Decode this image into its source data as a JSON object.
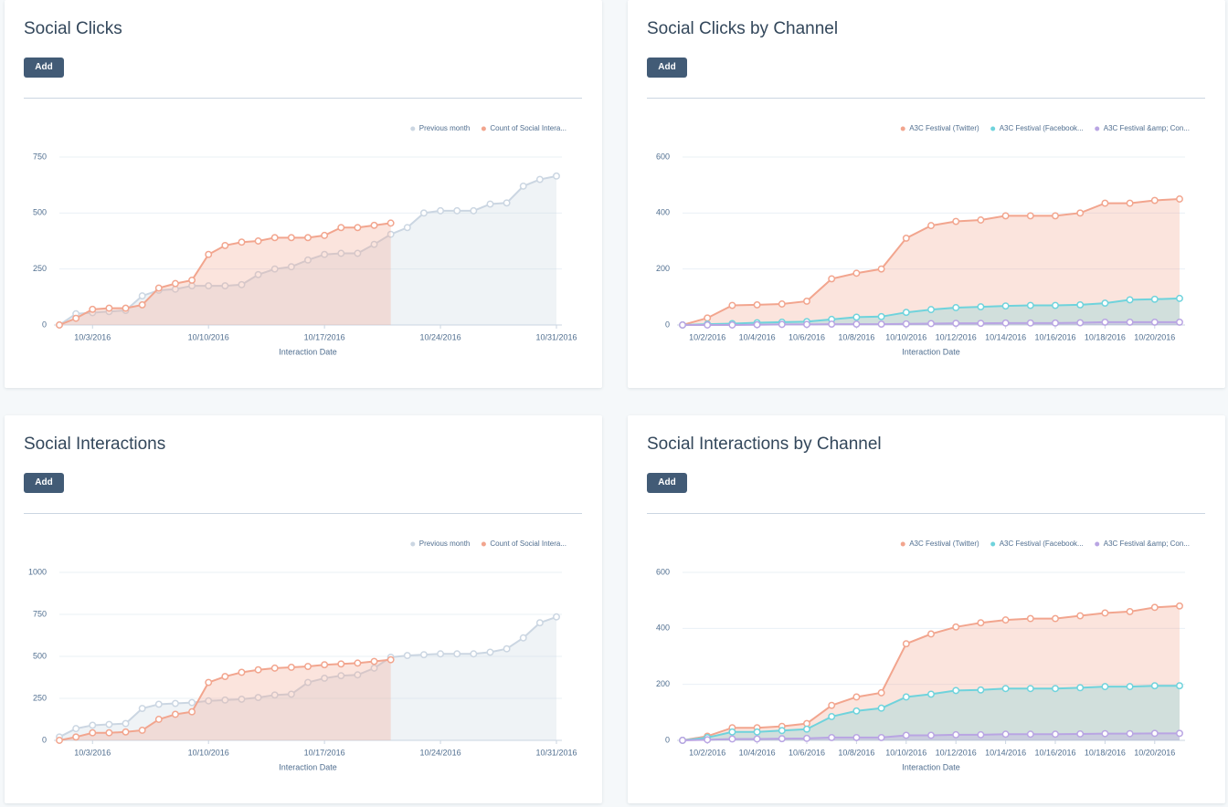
{
  "chart_data": [
    {
      "type": "line",
      "title": "Social Clicks",
      "button": "Add",
      "xlabel": "Interaction Date",
      "categories": [
        null,
        null,
        "10/3/2016",
        null,
        null,
        null,
        null,
        null,
        null,
        "10/10/2016",
        null,
        null,
        null,
        null,
        null,
        null,
        "10/17/2016",
        null,
        null,
        null,
        null,
        null,
        null,
        "10/24/2016",
        null,
        null,
        null,
        null,
        null,
        null,
        "10/31/2016"
      ],
      "series": [
        {
          "name": "Previous month",
          "color": "#cbd6e2",
          "values": [
            0,
            50,
            55,
            60,
            65,
            130,
            155,
            160,
            175,
            175,
            175,
            180,
            225,
            250,
            260,
            290,
            315,
            320,
            320,
            360,
            405,
            435,
            500,
            510,
            510,
            510,
            540,
            545,
            620,
            650,
            665
          ]
        },
        {
          "name": "Count of Social Intera...",
          "color": "#f2a58e",
          "values": [
            0,
            30,
            70,
            75,
            75,
            90,
            165,
            185,
            200,
            315,
            355,
            370,
            375,
            390,
            390,
            390,
            400,
            435,
            435,
            445,
            455,
            null,
            null,
            null,
            null,
            null,
            null,
            null,
            null,
            null,
            null
          ]
        }
      ],
      "ylim": [
        0,
        750
      ],
      "yticks": [
        0,
        250,
        500,
        750
      ],
      "grid": true,
      "legend": "top-right"
    },
    {
      "type": "line",
      "title": "Social Clicks by Channel",
      "button": "Add",
      "xlabel": "Interaction Date",
      "categories": [
        null,
        "10/2/2016",
        null,
        "10/4/2016",
        null,
        "10/6/2016",
        null,
        "10/8/2016",
        null,
        "10/10/2016",
        null,
        "10/12/2016",
        null,
        "10/14/2016",
        null,
        "10/16/2016",
        null,
        "10/18/2016",
        null,
        "10/20/2016",
        null
      ],
      "series": [
        {
          "name": "A3C Festival (Twitter)",
          "color": "#f2a58e",
          "values": [
            0,
            25,
            70,
            72,
            75,
            85,
            165,
            185,
            200,
            310,
            355,
            370,
            375,
            390,
            390,
            390,
            400,
            435,
            435,
            445,
            450
          ]
        },
        {
          "name": "A3C Festival (Facebook...",
          "color": "#6fd3dc",
          "values": [
            0,
            3,
            5,
            8,
            10,
            12,
            20,
            28,
            30,
            45,
            55,
            62,
            65,
            68,
            70,
            70,
            72,
            78,
            90,
            92,
            95
          ]
        },
        {
          "name": "A3C Festival &amp; Con...",
          "color": "#b9a5e3",
          "values": [
            0,
            0,
            0,
            1,
            2,
            2,
            3,
            3,
            3,
            4,
            5,
            6,
            6,
            7,
            7,
            7,
            8,
            10,
            10,
            10,
            10
          ]
        }
      ],
      "ylim": [
        0,
        600
      ],
      "yticks": [
        0,
        200,
        400,
        600
      ],
      "grid": true,
      "legend": "top-right"
    },
    {
      "type": "line",
      "title": "Social Interactions",
      "button": "Add",
      "xlabel": "Interaction Date",
      "categories": [
        null,
        null,
        "10/3/2016",
        null,
        null,
        null,
        null,
        null,
        null,
        "10/10/2016",
        null,
        null,
        null,
        null,
        null,
        null,
        "10/17/2016",
        null,
        null,
        null,
        null,
        null,
        null,
        "10/24/2016",
        null,
        null,
        null,
        null,
        null,
        null,
        "10/31/2016"
      ],
      "series": [
        {
          "name": "Previous month",
          "color": "#cbd6e2",
          "values": [
            20,
            70,
            90,
            95,
            100,
            190,
            215,
            220,
            225,
            235,
            240,
            245,
            255,
            270,
            275,
            345,
            370,
            385,
            390,
            430,
            495,
            505,
            510,
            515,
            515,
            515,
            525,
            545,
            610,
            700,
            735
          ]
        },
        {
          "name": "Count of Social Intera...",
          "color": "#f2a58e",
          "values": [
            0,
            20,
            45,
            45,
            50,
            60,
            125,
            155,
            170,
            345,
            380,
            405,
            420,
            430,
            435,
            440,
            450,
            455,
            460,
            470,
            480,
            null,
            null,
            null,
            null,
            null,
            null,
            null,
            null,
            null,
            null
          ]
        }
      ],
      "ylim": [
        0,
        1000
      ],
      "yticks": [
        0,
        250,
        500,
        750,
        1000
      ],
      "grid": true,
      "legend": "top-right"
    },
    {
      "type": "line",
      "title": "Social Interactions by Channel",
      "button": "Add",
      "xlabel": "Interaction Date",
      "categories": [
        null,
        "10/2/2016",
        null,
        "10/4/2016",
        null,
        "10/6/2016",
        null,
        "10/8/2016",
        null,
        "10/10/2016",
        null,
        "10/12/2016",
        null,
        "10/14/2016",
        null,
        "10/16/2016",
        null,
        "10/18/2016",
        null,
        "10/20/2016",
        null
      ],
      "series": [
        {
          "name": "A3C Festival (Twitter)",
          "color": "#f2a58e",
          "values": [
            0,
            15,
            45,
            45,
            50,
            60,
            125,
            155,
            170,
            345,
            380,
            405,
            420,
            430,
            435,
            435,
            445,
            455,
            460,
            475,
            480
          ]
        },
        {
          "name": "A3C Festival (Facebook...",
          "color": "#6fd3dc",
          "values": [
            0,
            10,
            30,
            30,
            35,
            40,
            85,
            105,
            115,
            155,
            165,
            178,
            180,
            185,
            185,
            185,
            188,
            192,
            192,
            195,
            195
          ]
        },
        {
          "name": "A3C Festival &amp; Con...",
          "color": "#b9a5e3",
          "values": [
            0,
            2,
            5,
            5,
            6,
            7,
            10,
            10,
            10,
            18,
            18,
            20,
            20,
            22,
            22,
            22,
            23,
            24,
            24,
            25,
            25
          ]
        }
      ],
      "ylim": [
        0,
        600
      ],
      "yticks": [
        0,
        200,
        400,
        600
      ],
      "grid": true,
      "legend": "top-right"
    }
  ]
}
